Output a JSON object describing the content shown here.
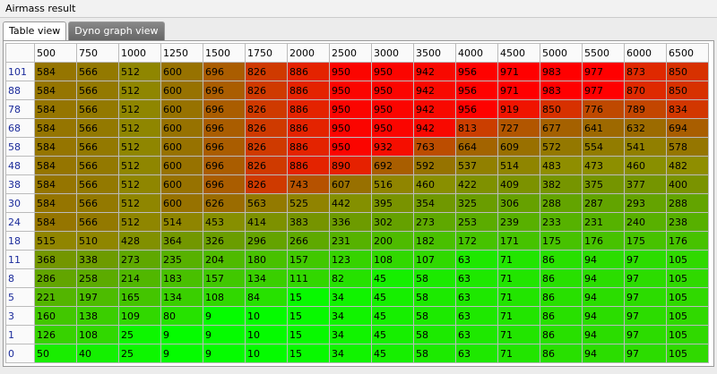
{
  "window_title": "Airmass result",
  "tabs": [
    "Table view",
    "Dyno graph view"
  ],
  "table": {
    "columns": [
      500,
      750,
      1000,
      1250,
      1500,
      1750,
      2000,
      2500,
      3000,
      3500,
      4000,
      4500,
      5000,
      5500,
      6000,
      6500
    ],
    "rows": [
      {
        "label": 101,
        "cells": [
          584,
          566,
          512,
          600,
          696,
          826,
          886,
          950,
          950,
          942,
          956,
          971,
          983,
          977,
          873,
          850
        ]
      },
      {
        "label": 88,
        "cells": [
          584,
          566,
          512,
          600,
          696,
          826,
          886,
          950,
          950,
          942,
          956,
          971,
          983,
          977,
          870,
          850
        ]
      },
      {
        "label": 78,
        "cells": [
          584,
          566,
          512,
          600,
          696,
          826,
          886,
          950,
          950,
          942,
          956,
          919,
          850,
          776,
          789,
          834
        ]
      },
      {
        "label": 68,
        "cells": [
          584,
          566,
          512,
          600,
          696,
          826,
          886,
          950,
          950,
          942,
          813,
          727,
          677,
          641,
          632,
          694
        ]
      },
      {
        "label": 58,
        "cells": [
          584,
          566,
          512,
          600,
          696,
          826,
          886,
          950,
          932,
          763,
          664,
          609,
          572,
          554,
          541,
          578
        ]
      },
      {
        "label": 48,
        "cells": [
          584,
          566,
          512,
          600,
          696,
          826,
          886,
          890,
          692,
          592,
          537,
          514,
          483,
          473,
          460,
          482
        ]
      },
      {
        "label": 38,
        "cells": [
          584,
          566,
          512,
          600,
          696,
          826,
          743,
          607,
          516,
          460,
          422,
          409,
          382,
          375,
          377,
          400
        ]
      },
      {
        "label": 30,
        "cells": [
          584,
          566,
          512,
          600,
          626,
          563,
          525,
          442,
          395,
          354,
          325,
          306,
          288,
          287,
          293,
          288
        ]
      },
      {
        "label": 24,
        "cells": [
          584,
          566,
          512,
          514,
          453,
          414,
          383,
          336,
          302,
          273,
          253,
          239,
          233,
          231,
          240,
          238
        ]
      },
      {
        "label": 18,
        "cells": [
          515,
          510,
          428,
          364,
          326,
          296,
          266,
          231,
          200,
          182,
          172,
          171,
          175,
          176,
          175,
          176
        ]
      },
      {
        "label": 11,
        "cells": [
          368,
          338,
          273,
          235,
          204,
          180,
          157,
          123,
          108,
          107,
          63,
          71,
          86,
          94,
          97,
          105
        ]
      },
      {
        "label": 8,
        "cells": [
          286,
          258,
          214,
          183,
          157,
          134,
          111,
          82,
          45,
          58,
          63,
          71,
          86,
          94,
          97,
          105
        ]
      },
      {
        "label": 5,
        "cells": [
          221,
          197,
          165,
          134,
          108,
          84,
          15,
          34,
          45,
          58,
          63,
          71,
          86,
          94,
          97,
          105
        ]
      },
      {
        "label": 3,
        "cells": [
          160,
          138,
          109,
          80,
          9,
          10,
          15,
          34,
          45,
          58,
          63,
          71,
          86,
          94,
          97,
          105
        ]
      },
      {
        "label": 1,
        "cells": [
          126,
          108,
          25,
          9,
          9,
          10,
          15,
          34,
          45,
          58,
          63,
          71,
          86,
          94,
          97,
          105
        ]
      },
      {
        "label": 0,
        "cells": [
          50,
          40,
          25,
          9,
          9,
          10,
          15,
          34,
          45,
          58,
          63,
          71,
          86,
          94,
          97,
          105
        ]
      }
    ]
  }
}
